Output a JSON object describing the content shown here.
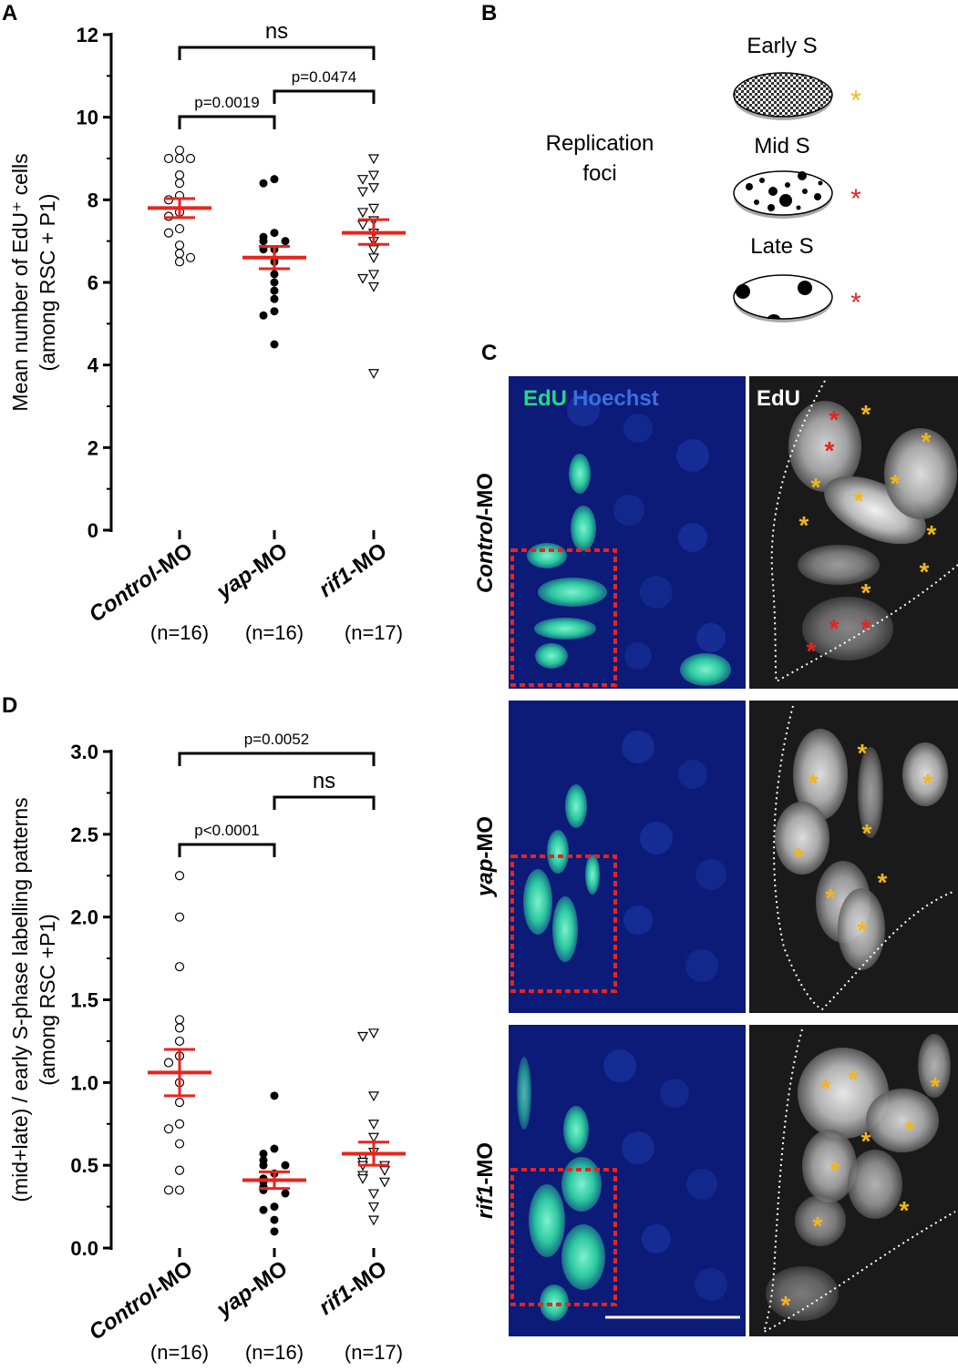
{
  "panels": {
    "A": "A",
    "B": "B",
    "C": "C",
    "D": "D"
  },
  "chart_data": [
    {
      "type": "scatter",
      "panel": "A",
      "ylabel": "Mean number of EdU⁺ cells\n(among RSC + P1)",
      "ylim": [
        0,
        12
      ],
      "yticks": [
        "0",
        "2",
        "4",
        "6",
        "8",
        "10",
        "12"
      ],
      "categories": [
        "Control-MO",
        "yap-MO",
        "rif1-MO"
      ],
      "category_prefix": [
        "Control",
        "yap",
        "rif1"
      ],
      "n_labels": [
        "(n=16)",
        "(n=16)",
        "(n=17)"
      ],
      "markers": [
        "open-circle",
        "filled-circle",
        "open-triangle"
      ],
      "series": [
        {
          "values": [
            9.2,
            9.0,
            9.0,
            9.0,
            8.6,
            8.4,
            8.1,
            8.0,
            7.7,
            7.6,
            7.3,
            7.2,
            6.9,
            6.7,
            6.5,
            6.6
          ]
        },
        {
          "values": [
            8.5,
            8.4,
            7.2,
            7.1,
            7.0,
            7.0,
            6.8,
            6.8,
            6.5,
            6.2,
            6.0,
            5.8,
            5.6,
            5.3,
            5.2,
            4.5
          ]
        },
        {
          "values": [
            9.0,
            8.6,
            8.5,
            8.3,
            8.2,
            7.8,
            7.7,
            7.5,
            7.4,
            7.2,
            7.0,
            6.8,
            6.6,
            6.2,
            6.1,
            5.9,
            3.8
          ]
        }
      ],
      "means": [
        7.8,
        6.6,
        7.2
      ],
      "sem_lower": [
        7.57,
        6.33,
        6.92
      ],
      "sem_upper": [
        8.03,
        6.87,
        7.52
      ],
      "comparisons": [
        {
          "from": 0,
          "to": 2,
          "label": "ns"
        },
        {
          "from": 0,
          "to": 1,
          "label": "p=0.0019"
        },
        {
          "from": 1,
          "to": 2,
          "label": "p=0.0474"
        }
      ],
      "error_color": "#e8241c"
    },
    {
      "type": "scatter",
      "panel": "D",
      "ylabel": "(mid+late) / early S-phase labelling patterns\n(among RSC +P1)",
      "ylim": [
        0,
        3
      ],
      "yticks": [
        "0.0",
        "0.5",
        "1.0",
        "1.5",
        "2.0",
        "2.5",
        "3.0"
      ],
      "categories": [
        "Control-MO",
        "yap-MO",
        "rif1-MO"
      ],
      "category_prefix": [
        "Control",
        "yap",
        "rif1"
      ],
      "n_labels": [
        "(n=16)",
        "(n=16)",
        "(n=17)"
      ],
      "markers": [
        "open-circle",
        "filled-circle",
        "open-triangle"
      ],
      "series": [
        {
          "values": [
            2.25,
            2.0,
            1.7,
            1.38,
            1.33,
            1.25,
            1.16,
            1.12,
            1.0,
            0.88,
            0.75,
            0.72,
            0.63,
            0.47,
            0.35,
            0.35
          ]
        },
        {
          "values": [
            0.92,
            0.6,
            0.57,
            0.53,
            0.5,
            0.5,
            0.45,
            0.42,
            0.4,
            0.37,
            0.35,
            0.33,
            0.25,
            0.23,
            0.17,
            0.1
          ]
        },
        {
          "values": [
            1.3,
            1.28,
            0.92,
            0.75,
            0.67,
            0.58,
            0.55,
            0.52,
            0.5,
            0.5,
            0.47,
            0.44,
            0.42,
            0.4,
            0.33,
            0.25,
            0.17
          ]
        }
      ],
      "means": [
        1.06,
        0.41,
        0.57
      ],
      "sem_lower": [
        0.92,
        0.36,
        0.5
      ],
      "sem_upper": [
        1.2,
        0.46,
        0.64
      ],
      "comparisons": [
        {
          "from": 0,
          "to": 2,
          "label": "p=0.0052"
        },
        {
          "from": 1,
          "to": 2,
          "label": "ns"
        },
        {
          "from": 0,
          "to": 1,
          "label": "p<0.0001"
        }
      ],
      "error_color": "#e8241c"
    }
  ],
  "schematic": {
    "title_line1": "Replication",
    "title_line2": "foci",
    "stages": [
      {
        "label": "Early S",
        "star_color": "#f2b51c"
      },
      {
        "label": "Mid S",
        "star_color": "#e8241c"
      },
      {
        "label": "Late S",
        "star_color": "#e8241c"
      }
    ],
    "star": "*"
  },
  "micrographs": {
    "left_label_edu": "EdU",
    "left_label_hoechst": "Hoechst",
    "right_label": "EdU",
    "row_labels": [
      {
        "italic": "Control",
        "suffix": "-MO"
      },
      {
        "italic": "yap",
        "suffix": "-MO"
      },
      {
        "italic": "rif1",
        "suffix": "-MO"
      }
    ],
    "colors": {
      "edu": "#22d98a",
      "hoechst": "#3a6fe0",
      "box": "#e8241c",
      "yellow_star": "#f2b51c",
      "red_star": "#e8241c"
    }
  }
}
